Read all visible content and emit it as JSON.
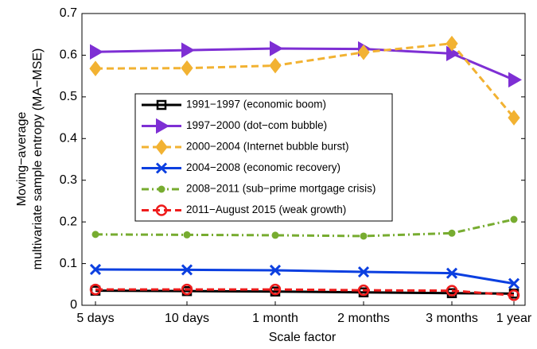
{
  "chart_data": {
    "type": "line",
    "xlabel": "Scale factor",
    "ylabel": [
      "Moving−average",
      "multivariate sample entropy (MA−MSE)"
    ],
    "categories": [
      "5 days",
      "10 days",
      "1 month",
      "2 months",
      "3 months",
      "1 year"
    ],
    "ylim": [
      0,
      0.7
    ],
    "yticks": [
      0,
      0.1,
      0.2,
      0.3,
      0.4,
      0.5,
      0.6,
      0.7
    ],
    "legend": "center-left",
    "series": [
      {
        "name": "1991−1997 (economic boom)",
        "color": "#000000",
        "marker": "square",
        "dash": "solid",
        "values": [
          0.035,
          0.034,
          0.033,
          0.031,
          0.029,
          0.028
        ]
      },
      {
        "name": "1997−2000 (dot−com bubble)",
        "color": "#7e2fd4",
        "marker": "triangle-right",
        "dash": "solid",
        "values": [
          0.608,
          0.612,
          0.616,
          0.615,
          0.604,
          0.541
        ]
      },
      {
        "name": "2000−2004 (Internet bubble burst)",
        "color": "#f2b232",
        "marker": "diamond",
        "dash": "dashed",
        "values": [
          0.568,
          0.569,
          0.575,
          0.607,
          0.628,
          0.45
        ]
      },
      {
        "name": "2004−2008 (economic recovery)",
        "color": "#0b3fe0",
        "marker": "x",
        "dash": "solid",
        "values": [
          0.086,
          0.085,
          0.084,
          0.08,
          0.077,
          0.052
        ]
      },
      {
        "name": "2008−2011 (sub−prime mortgage crisis)",
        "color": "#77ac30",
        "marker": "dot",
        "dash": "dashdot",
        "values": [
          0.17,
          0.169,
          0.168,
          0.166,
          0.173,
          0.206
        ]
      },
      {
        "name": "2011−August 2015 (weak growth)",
        "color": "#ee1c1c",
        "marker": "circle",
        "dash": "dashed",
        "values": [
          0.038,
          0.038,
          0.038,
          0.036,
          0.035,
          0.024
        ]
      }
    ]
  }
}
